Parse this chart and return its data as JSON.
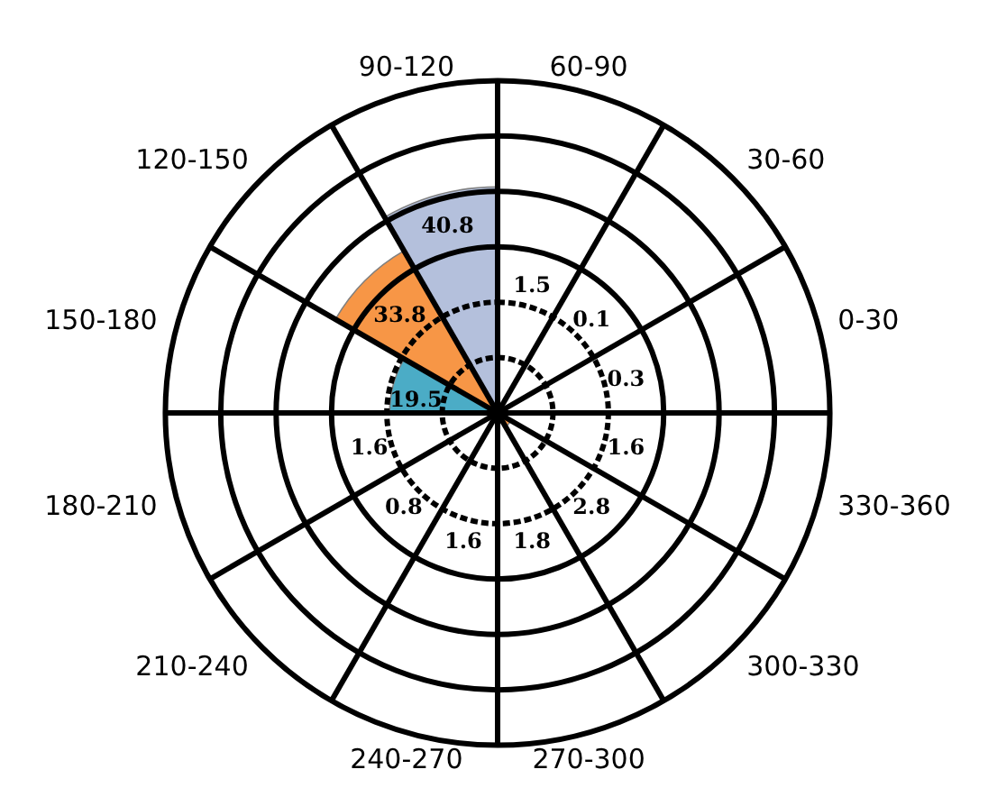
{
  "chart_data": {
    "type": "other",
    "categories": [
      "0-30",
      "30-60",
      "60-90",
      "90-120",
      "120-150",
      "150-180",
      "180-210",
      "210-240",
      "240-270",
      "270-300",
      "300-330",
      "330-360"
    ],
    "values": [
      0.3,
      0.1,
      1.5,
      40.8,
      33.8,
      19.5,
      1.6,
      0.8,
      1.6,
      1.8,
      2.8,
      1.6
    ],
    "colors": [
      "#9bbb59",
      "#4f81bd",
      "#1f3d7a",
      "#b4c0dc",
      "#f79646",
      "#4bacc6",
      "#8064a2",
      "#c0504d",
      "#4f81bd",
      "#9bbb59",
      "#f79646",
      "#c9a227"
    ],
    "data_labels": true
  }
}
